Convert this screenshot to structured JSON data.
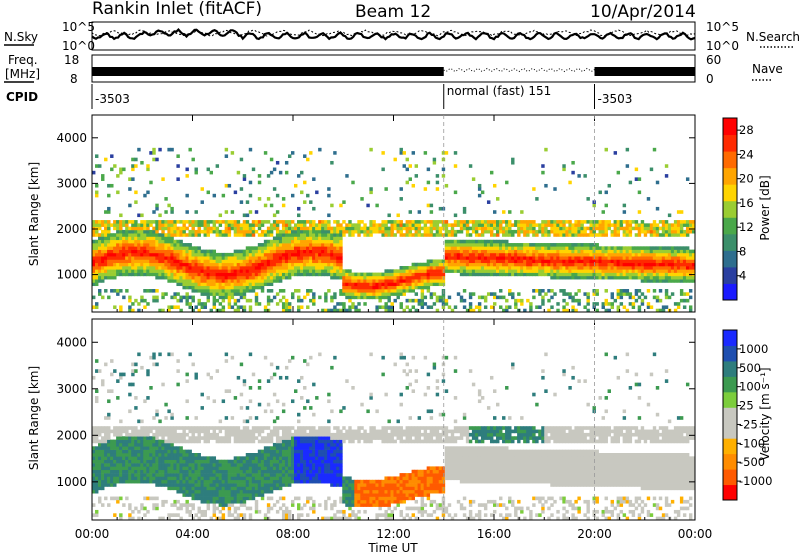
{
  "header": {
    "station": "Rankin Inlet (fitACF)",
    "beam": "Beam 12",
    "date": "10/Apr/2014"
  },
  "top_panels": {
    "nsky_label": "N.Sky",
    "nsky_ticks": [
      "10^5",
      "10^0"
    ],
    "nsearch_label": "N.Search",
    "nsearch_ticks": [
      "10^5",
      "10^0"
    ],
    "freq_label_1": "Freq.",
    "freq_label_2": "[MHz]",
    "freq_ticks": [
      "18",
      "8"
    ],
    "nave_label": "Nave",
    "nave_ticks": [
      "60",
      "0"
    ],
    "cpid_label": "CPID",
    "cpid_segments": [
      {
        "start_hour": 0,
        "label": "-3503"
      },
      {
        "start_hour": 14,
        "label": "normal (fast) 151"
      },
      {
        "start_hour": 20,
        "label": "-3503"
      }
    ]
  },
  "colors": {
    "power_scale": [
      "#1a1aff",
      "#2a3fa0",
      "#2e6e8e",
      "#3b8f6a",
      "#4aa84a",
      "#9acd32",
      "#ffd400",
      "#ffa500",
      "#ff6a00",
      "#ff2a00",
      "#ff0000"
    ],
    "velocity_scale": [
      "#ff0000",
      "#ff5a00",
      "#ff8c00",
      "#ffb000",
      "#c8c8c0",
      "#c8c8c0",
      "#7ccd3c",
      "#3c9a50",
      "#2e7d7d",
      "#1f4fb0",
      "#1a2aff"
    ]
  },
  "chart_data": [
    {
      "type": "heatmap",
      "name": "power",
      "ylabel": "Slant Range [km]",
      "x_range_hours": [
        0,
        24
      ],
      "ylim": [
        180,
        4500
      ],
      "yticks": [
        1000,
        2000,
        3000,
        4000
      ],
      "colorbar_label": "Power [dB]",
      "colorbar_ticks": [
        4,
        8,
        12,
        16,
        20,
        24,
        28
      ],
      "colorbar_range": [
        0,
        30
      ]
    },
    {
      "type": "heatmap",
      "name": "velocity",
      "ylabel": "Slant Range [km]",
      "xlabel": "Time UT",
      "x_range_hours": [
        0,
        24
      ],
      "ylim": [
        180,
        4500
      ],
      "yticks": [
        1000,
        2000,
        3000,
        4000
      ],
      "xticks": [
        "00:00",
        "04:00",
        "08:00",
        "12:00",
        "16:00",
        "20:00",
        "00:00"
      ],
      "colorbar_label": "Velocity [m s⁻¹]",
      "colorbar_ticks": [
        "1000",
        "500",
        "100",
        "25",
        "-25",
        "-100",
        "-500",
        "-1000"
      ]
    }
  ]
}
